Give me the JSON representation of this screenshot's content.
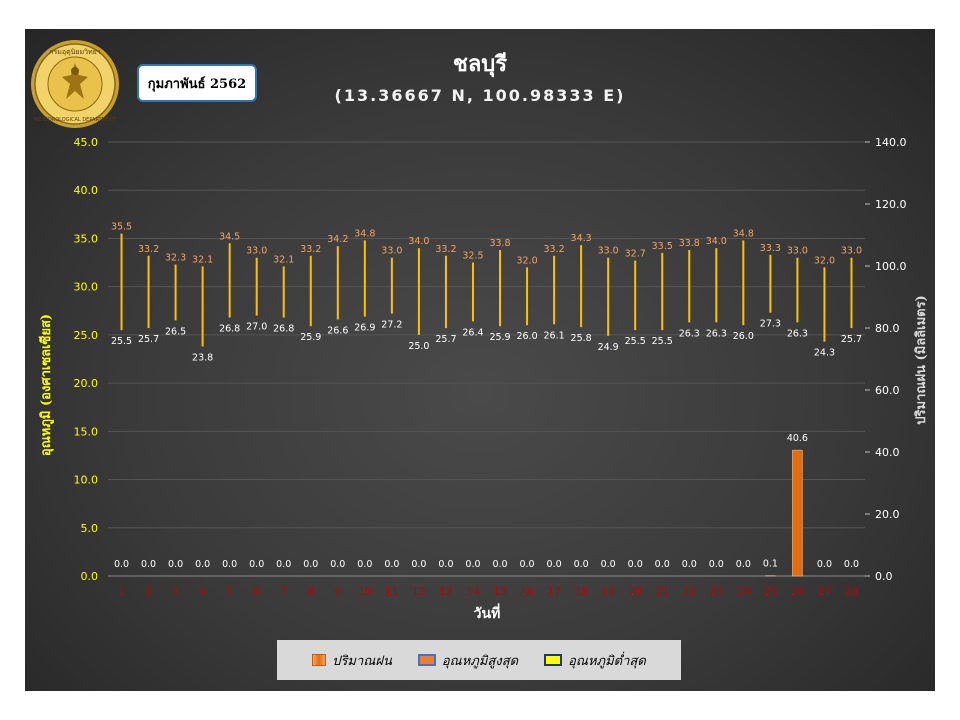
{
  "badge": "กุมภาพันธ์ 2562",
  "logo": {
    "text_top": "กรมอุตุนิยมวิทยา",
    "text_bottom": "METEOROLOGICAL DEPARTMENT"
  },
  "chart_data": {
    "type": "bar",
    "title": "ชลบุรี",
    "subtitle": "(13.36667 N, 100.98333 E)",
    "xlabel": "วันที่",
    "ylabel": "อุณหภูมิ (องศาเซลเซียส)",
    "y2label": "ปริมาณฝน (มิลลิเมตร)",
    "ylim": [
      0,
      45
    ],
    "y2lim": [
      0,
      140
    ],
    "y_ticks": [
      "0.0",
      "5.0",
      "10.0",
      "15.0",
      "20.0",
      "25.0",
      "30.0",
      "35.0",
      "40.0",
      "45.0"
    ],
    "y2_ticks": [
      "0.0",
      "20.0",
      "40.0",
      "60.0",
      "80.0",
      "100.0",
      "120.0",
      "140.0"
    ],
    "categories": [
      "1",
      "2",
      "3",
      "4",
      "5",
      "6",
      "7",
      "8",
      "9",
      "10",
      "11",
      "12",
      "13",
      "14",
      "15",
      "16",
      "17",
      "18",
      "19",
      "20",
      "21",
      "22",
      "23",
      "24",
      "25",
      "26",
      "27",
      "28"
    ],
    "series": [
      {
        "name": "ปริมาณฝน",
        "axis": "right",
        "values": [
          0.0,
          0.0,
          0.0,
          0.0,
          0.0,
          0.0,
          0.0,
          0.0,
          0.0,
          0.0,
          0.0,
          0.0,
          0.0,
          0.0,
          0.0,
          0.0,
          0.0,
          0.0,
          0.0,
          0.0,
          0.0,
          0.0,
          0.0,
          0.0,
          0.1,
          40.6,
          0.0,
          0.0
        ],
        "labels": [
          "0.0",
          "0.0",
          "0.0",
          "0.0",
          "0.0",
          "0.0",
          "0.0",
          "0.0",
          "0.0",
          "0.0",
          "0.0",
          "0.0",
          "0.0",
          "0.0",
          "0.0",
          "0.0",
          "0.0",
          "0.0",
          "0.0",
          "0.0",
          "0.0",
          "0.0",
          "0.0",
          "0.0",
          "0.1",
          "40.6",
          "0.0",
          "0.0"
        ]
      },
      {
        "name": "อุณหภูมิสูงสุด",
        "axis": "left",
        "values": [
          35.5,
          33.2,
          32.3,
          32.1,
          34.5,
          33.0,
          32.1,
          33.2,
          34.2,
          34.8,
          33.0,
          34.0,
          33.2,
          32.5,
          33.8,
          32.0,
          33.2,
          34.3,
          33.0,
          32.7,
          33.5,
          33.8,
          34.0,
          34.8,
          33.3,
          33.0,
          32.0,
          33.0
        ],
        "labels": [
          "35.5",
          "33.2",
          "32.3",
          "32.1",
          "34.5",
          "33.0",
          "32.1",
          "33.2",
          "34.2",
          "34.8",
          "33.0",
          "34.0",
          "33.2",
          "32.5",
          "33.8",
          "32.0",
          "33.2",
          "34.3",
          "33.0",
          "32.7",
          "33.5",
          "33.8",
          "34.0",
          "34.8",
          "33.3",
          "33.0",
          "32.0",
          "33.0"
        ]
      },
      {
        "name": "อุณหภูมิต่ำสุด",
        "axis": "left",
        "values": [
          25.5,
          25.7,
          26.5,
          23.8,
          26.8,
          27.0,
          26.8,
          25.9,
          26.6,
          26.9,
          27.2,
          25.0,
          25.7,
          26.4,
          25.9,
          26.0,
          26.1,
          25.8,
          24.9,
          25.5,
          25.5,
          26.3,
          26.3,
          26.0,
          27.3,
          26.3,
          24.3,
          25.7
        ],
        "labels": [
          "25.5",
          "25.7",
          "26.5",
          "23.8",
          "26.8",
          "27.0",
          "26.8",
          "25.9",
          "26.6",
          "26.9",
          "27.2",
          "25.0",
          "25.7",
          "26.4",
          "25.9",
          "26.0",
          "26.1",
          "25.8",
          "24.9",
          "25.5",
          "25.5",
          "26.3",
          "26.3",
          "26.0",
          "27.3",
          "26.3",
          "24.3",
          "25.7"
        ]
      }
    ],
    "colors": {
      "rain": "#e46c0a",
      "max_label": "#f4a460",
      "min_label": "#ffffff",
      "range_line": "#ffc000",
      "axis_label": "#ffff00",
      "y2_label": "#d9d9d9",
      "x_tick": "#c00000",
      "grid": "#555555"
    },
    "grid": true,
    "legend_position": "bottom"
  }
}
